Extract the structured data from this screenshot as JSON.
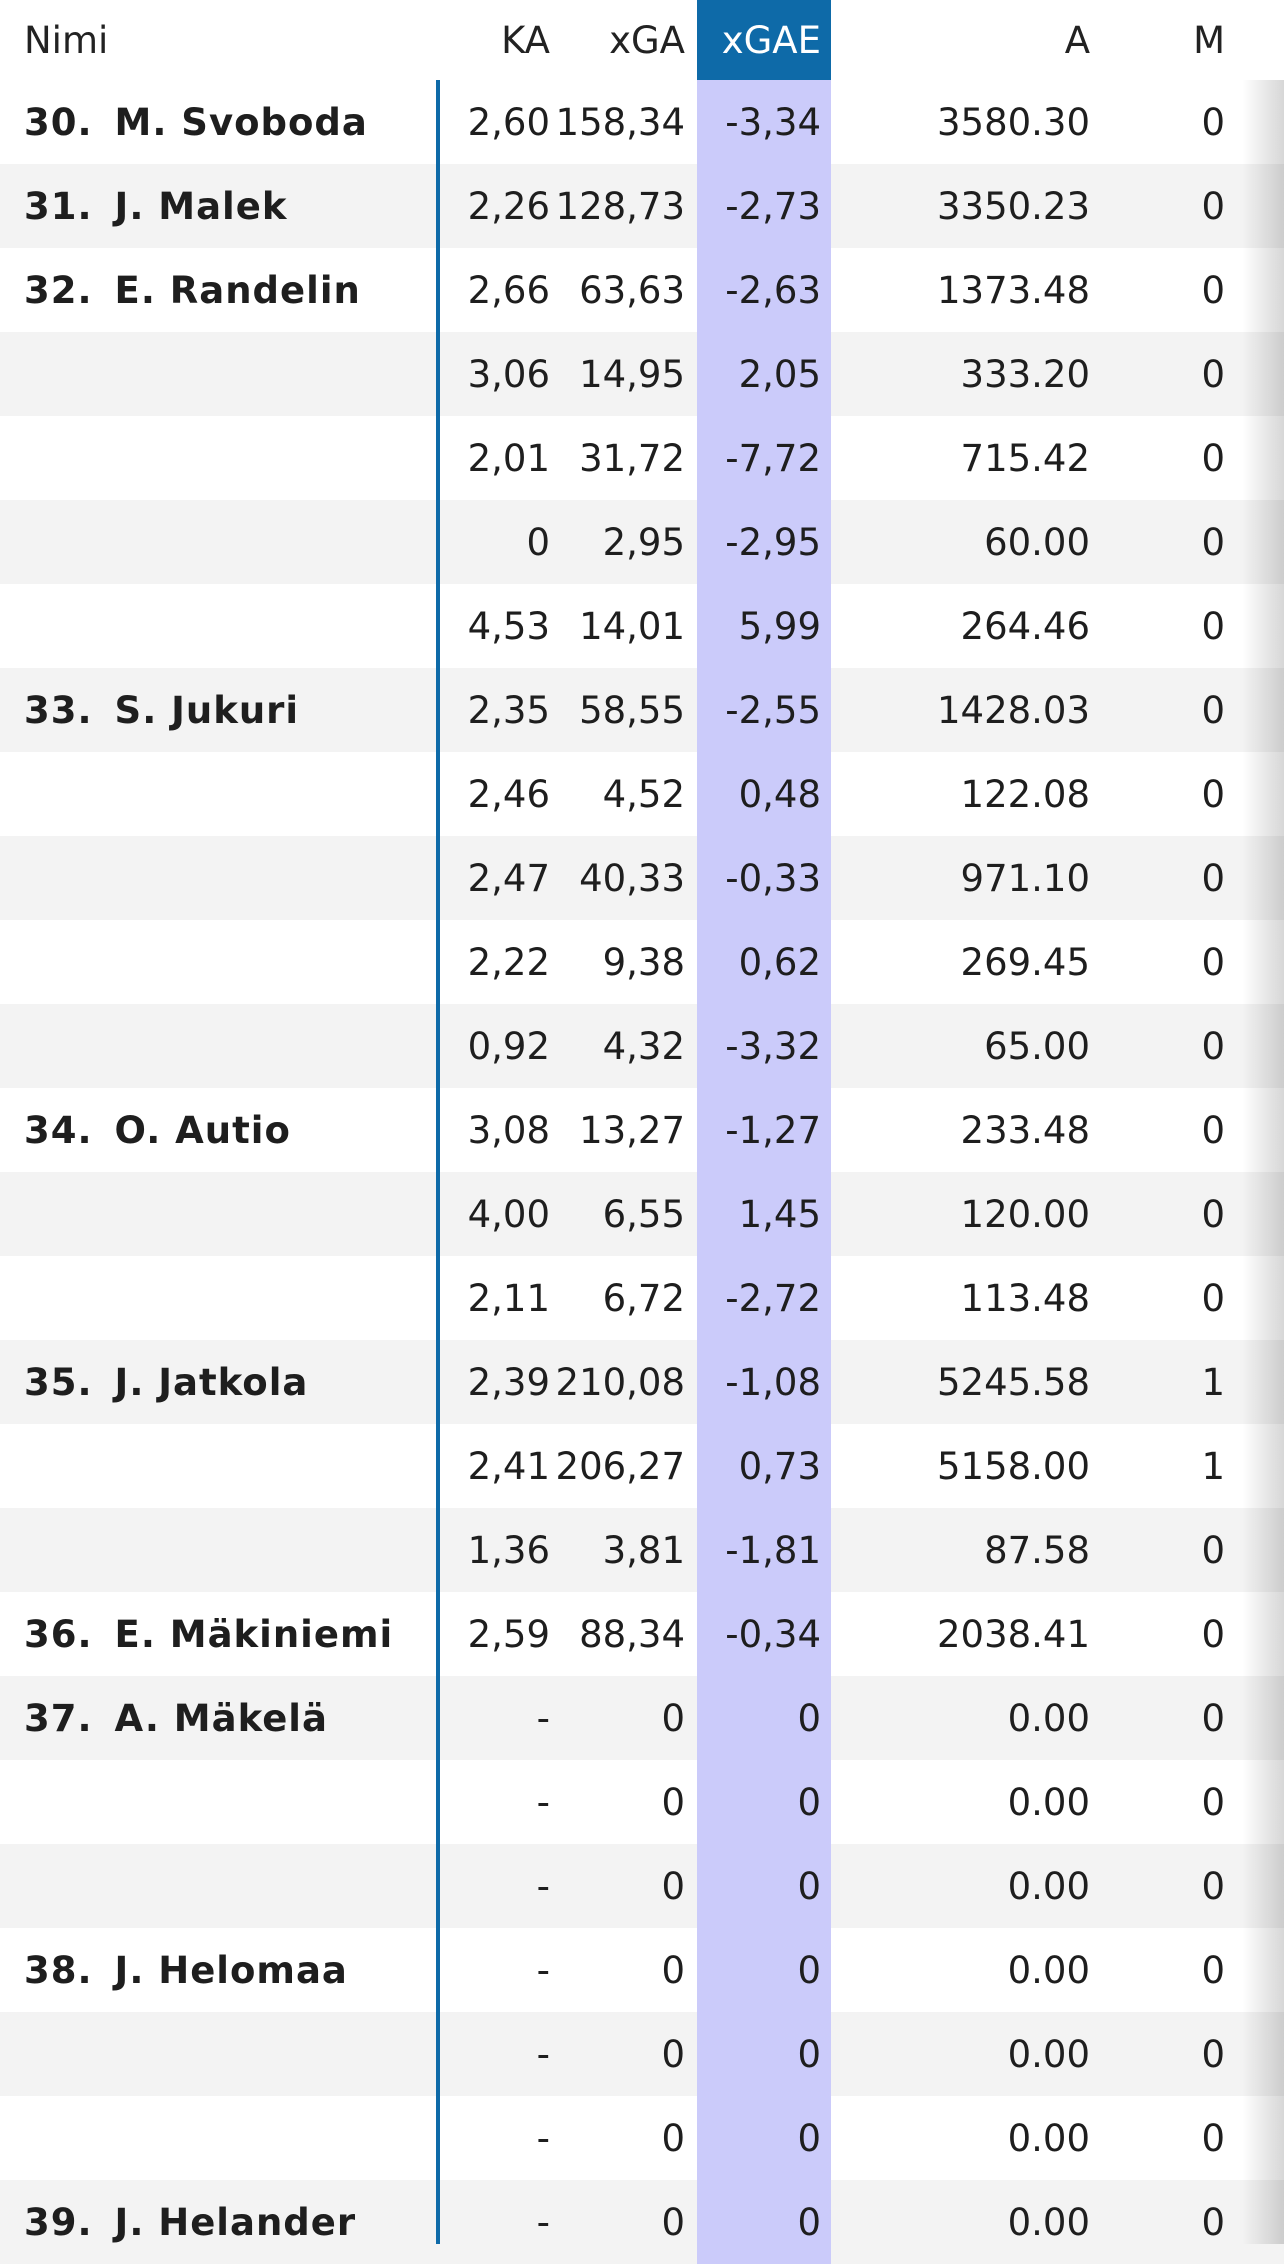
{
  "headers": {
    "name": "Nimi",
    "ka": "KA",
    "xga": "xGA",
    "xgae": "xGAE",
    "a": "A",
    "m": "M"
  },
  "rows": [
    {
      "rank": "30.",
      "name": "M. Svoboda",
      "ka": "2,60",
      "xga": "158,34",
      "xgae": "-3,34",
      "a": "3580.30",
      "m": "0"
    },
    {
      "rank": "31.",
      "name": "J. Malek",
      "ka": "2,26",
      "xga": "128,73",
      "xgae": "-2,73",
      "a": "3350.23",
      "m": "0"
    },
    {
      "rank": "32.",
      "name": "E. Randelin",
      "ka": "2,66",
      "xga": "63,63",
      "xgae": "-2,63",
      "a": "1373.48",
      "m": "0"
    },
    {
      "rank": "",
      "name": "",
      "ka": "3,06",
      "xga": "14,95",
      "xgae": "2,05",
      "a": "333.20",
      "m": "0"
    },
    {
      "rank": "",
      "name": "",
      "ka": "2,01",
      "xga": "31,72",
      "xgae": "-7,72",
      "a": "715.42",
      "m": "0"
    },
    {
      "rank": "",
      "name": "",
      "ka": "0",
      "xga": "2,95",
      "xgae": "-2,95",
      "a": "60.00",
      "m": "0"
    },
    {
      "rank": "",
      "name": "",
      "ka": "4,53",
      "xga": "14,01",
      "xgae": "5,99",
      "a": "264.46",
      "m": "0"
    },
    {
      "rank": "33.",
      "name": "S. Jukuri",
      "ka": "2,35",
      "xga": "58,55",
      "xgae": "-2,55",
      "a": "1428.03",
      "m": "0"
    },
    {
      "rank": "",
      "name": "",
      "ka": "2,46",
      "xga": "4,52",
      "xgae": "0,48",
      "a": "122.08",
      "m": "0"
    },
    {
      "rank": "",
      "name": "",
      "ka": "2,47",
      "xga": "40,33",
      "xgae": "-0,33",
      "a": "971.10",
      "m": "0"
    },
    {
      "rank": "",
      "name": "",
      "ka": "2,22",
      "xga": "9,38",
      "xgae": "0,62",
      "a": "269.45",
      "m": "0"
    },
    {
      "rank": "",
      "name": "",
      "ka": "0,92",
      "xga": "4,32",
      "xgae": "-3,32",
      "a": "65.00",
      "m": "0"
    },
    {
      "rank": "34.",
      "name": "O. Autio",
      "ka": "3,08",
      "xga": "13,27",
      "xgae": "-1,27",
      "a": "233.48",
      "m": "0"
    },
    {
      "rank": "",
      "name": "",
      "ka": "4,00",
      "xga": "6,55",
      "xgae": "1,45",
      "a": "120.00",
      "m": "0"
    },
    {
      "rank": "",
      "name": "",
      "ka": "2,11",
      "xga": "6,72",
      "xgae": "-2,72",
      "a": "113.48",
      "m": "0"
    },
    {
      "rank": "35.",
      "name": "J. Jatkola",
      "ka": "2,39",
      "xga": "210,08",
      "xgae": "-1,08",
      "a": "5245.58",
      "m": "1"
    },
    {
      "rank": "",
      "name": "",
      "ka": "2,41",
      "xga": "206,27",
      "xgae": "0,73",
      "a": "5158.00",
      "m": "1"
    },
    {
      "rank": "",
      "name": "",
      "ka": "1,36",
      "xga": "3,81",
      "xgae": "-1,81",
      "a": "87.58",
      "m": "0"
    },
    {
      "rank": "36.",
      "name": "E. Mäkiniemi",
      "ka": "2,59",
      "xga": "88,34",
      "xgae": "-0,34",
      "a": "2038.41",
      "m": "0"
    },
    {
      "rank": "37.",
      "name": "A. Mäkelä",
      "ka": "-",
      "xga": "0",
      "xgae": "0",
      "a": "0.00",
      "m": "0"
    },
    {
      "rank": "",
      "name": "",
      "ka": "-",
      "xga": "0",
      "xgae": "0",
      "a": "0.00",
      "m": "0"
    },
    {
      "rank": "",
      "name": "",
      "ka": "-",
      "xga": "0",
      "xgae": "0",
      "a": "0.00",
      "m": "0"
    },
    {
      "rank": "38.",
      "name": "J. Helomaa",
      "ka": "-",
      "xga": "0",
      "xgae": "0",
      "a": "0.00",
      "m": "0"
    },
    {
      "rank": "",
      "name": "",
      "ka": "-",
      "xga": "0",
      "xgae": "0",
      "a": "0.00",
      "m": "0"
    },
    {
      "rank": "",
      "name": "",
      "ka": "-",
      "xga": "0",
      "xgae": "0",
      "a": "0.00",
      "m": "0"
    },
    {
      "rank": "39.",
      "name": "J. Helander",
      "ka": "-",
      "xga": "0",
      "xgae": "0",
      "a": "0.00",
      "m": "0"
    }
  ]
}
